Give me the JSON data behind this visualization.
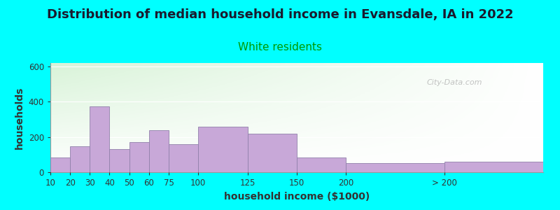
{
  "title": "Distribution of median household income in Evansdale, IA in 2022",
  "subtitle": "White residents",
  "xlabel": "household income ($1000)",
  "ylabel": "households",
  "bg_color": "#00FFFF",
  "bar_color": "#C8A8D8",
  "bar_edge_color": "#9080AA",
  "categories": [
    "10",
    "20",
    "30",
    "40",
    "50",
    "60",
    "75",
    "100",
    "125",
    "150",
    "200",
    "> 200"
  ],
  "values": [
    85,
    148,
    375,
    130,
    170,
    238,
    158,
    258,
    220,
    82,
    52,
    60
  ],
  "bin_edges": [
    0,
    10,
    20,
    30,
    40,
    50,
    60,
    75,
    100,
    125,
    150,
    200,
    250
  ],
  "ylim": [
    0,
    620
  ],
  "yticks": [
    0,
    200,
    400,
    600
  ],
  "title_fontsize": 13,
  "subtitle_fontsize": 11,
  "subtitle_color": "#009900",
  "axis_label_fontsize": 10,
  "watermark": "City-Data.com"
}
